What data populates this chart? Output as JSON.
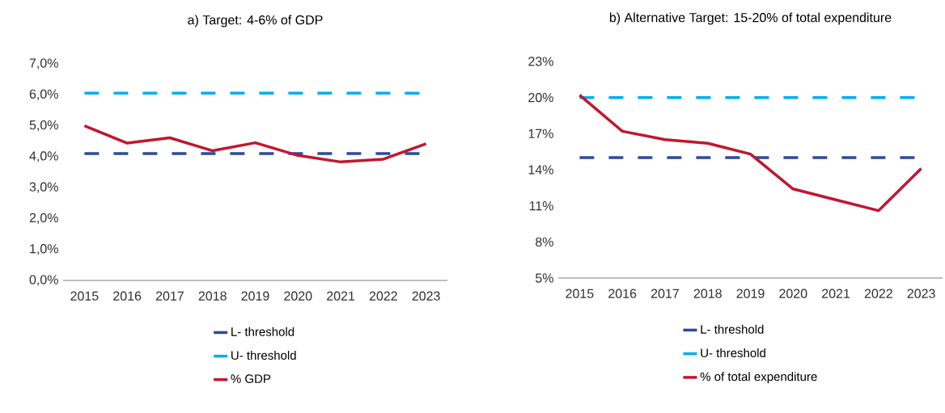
{
  "chart_data": [
    {
      "type": "line",
      "title": "a) Target: 4-6% of GDP",
      "categories": [
        "2015",
        "2016",
        "2017",
        "2018",
        "2019",
        "2020",
        "2021",
        "2022",
        "2023"
      ],
      "series": [
        {
          "name": "L- threshold",
          "color": "#2e4a9e",
          "line_style": "dashed",
          "values": [
            4.1,
            4.1,
            4.1,
            4.1,
            4.1,
            4.1,
            4.1,
            4.1,
            4.1
          ]
        },
        {
          "name": "U- threshold",
          "color": "#00aeef",
          "line_style": "dashed",
          "values": [
            6.05,
            6.05,
            6.05,
            6.05,
            6.05,
            6.05,
            6.05,
            6.05,
            6.05
          ]
        },
        {
          "name": "% GDP",
          "color": "#c0172f",
          "line_style": "solid",
          "values": [
            5.0,
            4.44,
            4.61,
            4.19,
            4.45,
            4.04,
            3.83,
            3.92,
            4.42
          ]
        }
      ],
      "ylim": [
        0,
        7
      ],
      "yticks": [
        {
          "value": 0,
          "label": "0,0%"
        },
        {
          "value": 1,
          "label": "1,0%"
        },
        {
          "value": 2,
          "label": "2,0%"
        },
        {
          "value": 3,
          "label": "3,0%"
        },
        {
          "value": 4,
          "label": "4,0%"
        },
        {
          "value": 5,
          "label": "5,0%"
        },
        {
          "value": 6,
          "label": "6,0%"
        },
        {
          "value": 7,
          "label": "7,0%"
        }
      ],
      "legend": "bottom"
    },
    {
      "type": "line",
      "title": "b) Alternative Target: 15-20% of total expenditure",
      "categories": [
        "2015",
        "2016",
        "2017",
        "2018",
        "2019",
        "2020",
        "2021",
        "2022",
        "2023"
      ],
      "series": [
        {
          "name": "L- threshold",
          "color": "#2e4a9e",
          "line_style": "dashed",
          "values": [
            15,
            15,
            15,
            15,
            15,
            15,
            15,
            15,
            15
          ]
        },
        {
          "name": "U- threshold",
          "color": "#00aeef",
          "line_style": "dashed",
          "values": [
            20,
            20,
            20,
            20,
            20,
            20,
            20,
            20,
            20
          ]
        },
        {
          "name": "% of total expenditure",
          "color": "#c0172f",
          "line_style": "solid",
          "values": [
            20.2,
            17.2,
            16.5,
            16.2,
            15.3,
            12.4,
            11.5,
            10.6,
            14.1
          ]
        }
      ],
      "ylim": [
        5,
        23
      ],
      "yticks": [
        {
          "value": 5,
          "label": "5%"
        },
        {
          "value": 8,
          "label": "8%"
        },
        {
          "value": 11,
          "label": "11%"
        },
        {
          "value": 14,
          "label": "14%"
        },
        {
          "value": 17,
          "label": "17%"
        },
        {
          "value": 20,
          "label": "20%"
        },
        {
          "value": 23,
          "label": "23%"
        }
      ],
      "legend": "bottom"
    }
  ]
}
